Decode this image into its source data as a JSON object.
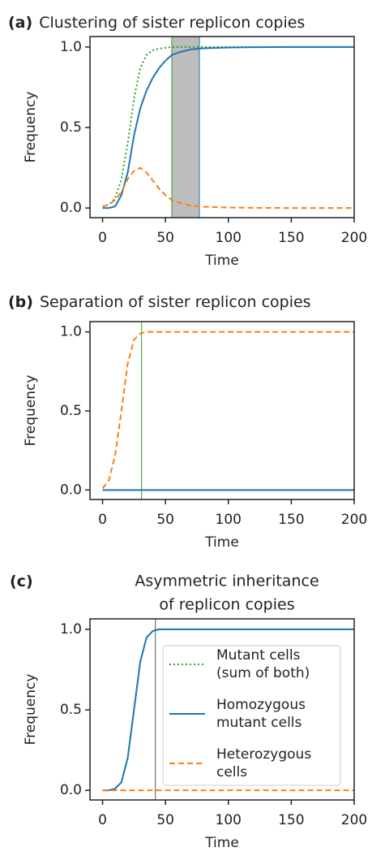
{
  "chart_data": [
    {
      "type": "line",
      "panel_label": "(a)",
      "title": "Clustering of sister replicon copies",
      "xlabel": "Time",
      "ylabel": "Frequency",
      "xlim": [
        -10,
        200
      ],
      "ylim": [
        -0.06,
        1.065
      ],
      "xticks": [
        0,
        50,
        100,
        150,
        200
      ],
      "yticks": [
        {
          "value": 0,
          "label": "0.0"
        },
        {
          "value": 0.5,
          "label": "0.5"
        },
        {
          "value": 1,
          "label": "1.0"
        }
      ],
      "shade": [
        55,
        77
      ],
      "shade_color": "#bdbdbd",
      "vlines": [
        {
          "x": 55,
          "color": "#2ca02c"
        },
        {
          "x": 77,
          "color": "#1f77b4"
        }
      ],
      "x": [
        0,
        5,
        10,
        15,
        20,
        25,
        30,
        35,
        40,
        45,
        50,
        55,
        60,
        70,
        80,
        100,
        120,
        150,
        200
      ],
      "series": [
        {
          "color": "#2ca02c",
          "style": "dotted",
          "values": [
            0.01,
            0.02,
            0.06,
            0.18,
            0.4,
            0.68,
            0.87,
            0.95,
            0.98,
            0.99,
            0.995,
            1,
            1,
            1,
            1,
            1,
            1,
            1,
            1
          ]
        },
        {
          "color": "#1f77b4",
          "style": "solid",
          "values": [
            0,
            0,
            0.01,
            0.08,
            0.22,
            0.45,
            0.62,
            0.73,
            0.81,
            0.87,
            0.915,
            0.95,
            0.965,
            0.985,
            0.992,
            0.997,
            0.999,
            1,
            1
          ]
        },
        {
          "color": "#ff7f0e",
          "style": "dashed",
          "values": [
            0.01,
            0.02,
            0.05,
            0.1,
            0.18,
            0.23,
            0.25,
            0.22,
            0.17,
            0.12,
            0.08,
            0.05,
            0.035,
            0.015,
            0.008,
            0.003,
            0.001,
            0,
            0
          ]
        }
      ]
    },
    {
      "type": "line",
      "panel_label": "(b)",
      "title": "Separation of sister replicon copies",
      "xlabel": "Time",
      "ylabel": "Frequency",
      "xlim": [
        -10,
        200
      ],
      "ylim": [
        -0.06,
        1.065
      ],
      "xticks": [
        0,
        50,
        100,
        150,
        200
      ],
      "yticks": [
        {
          "value": 0,
          "label": "0.0"
        },
        {
          "value": 0.5,
          "label": "0.5"
        },
        {
          "value": 1,
          "label": "1.0"
        }
      ],
      "vlines": [
        {
          "x": 31,
          "color": "#2ca02c"
        }
      ],
      "x": [
        0,
        5,
        10,
        15,
        20,
        25,
        30,
        35,
        40,
        50,
        100,
        150,
        200
      ],
      "series": [
        {
          "color": "#1f77b4",
          "style": "solid",
          "values": [
            0,
            0,
            0,
            0,
            0,
            0,
            0,
            0,
            0,
            0,
            0,
            0,
            0
          ]
        },
        {
          "color": "#ff7f0e",
          "style": "dashed",
          "values": [
            0.01,
            0.06,
            0.22,
            0.5,
            0.8,
            0.95,
            0.99,
            1,
            1,
            1,
            1,
            1,
            1
          ]
        }
      ]
    },
    {
      "type": "line",
      "panel_label": "(c)",
      "title": [
        "Asymmetric inheritance",
        "of replicon copies"
      ],
      "xlabel": "Time",
      "ylabel": "Frequency",
      "xlim": [
        -10,
        200
      ],
      "ylim": [
        -0.06,
        1.065
      ],
      "xticks": [
        0,
        50,
        100,
        150,
        200
      ],
      "yticks": [
        {
          "value": 0,
          "label": "0.0"
        },
        {
          "value": 0.5,
          "label": "0.5"
        },
        {
          "value": 1,
          "label": "1.0"
        }
      ],
      "vlines": [
        {
          "x": 42,
          "color": "#555555"
        }
      ],
      "x": [
        0,
        5,
        10,
        15,
        20,
        25,
        30,
        35,
        40,
        45,
        50,
        100,
        150,
        200
      ],
      "series": [
        {
          "name": [
            "Mutant cells",
            "(sum of both)"
          ],
          "color": "#2ca02c",
          "style": "dotted",
          "values": [
            0,
            0,
            0.01,
            0.05,
            0.2,
            0.5,
            0.8,
            0.95,
            0.99,
            1,
            1,
            1,
            1,
            1
          ]
        },
        {
          "name": [
            "Homozygous",
            "mutant cells"
          ],
          "color": "#1f77b4",
          "style": "solid",
          "values": [
            0,
            0,
            0.01,
            0.05,
            0.2,
            0.5,
            0.8,
            0.95,
            0.99,
            1,
            1,
            1,
            1,
            1
          ]
        },
        {
          "name": [
            "Heterozygous",
            "cells"
          ],
          "color": "#ff7f0e",
          "style": "dashed",
          "values": [
            0,
            0,
            0,
            0,
            0,
            0,
            0,
            0,
            0,
            0,
            0,
            0,
            0,
            0
          ]
        }
      ]
    }
  ]
}
